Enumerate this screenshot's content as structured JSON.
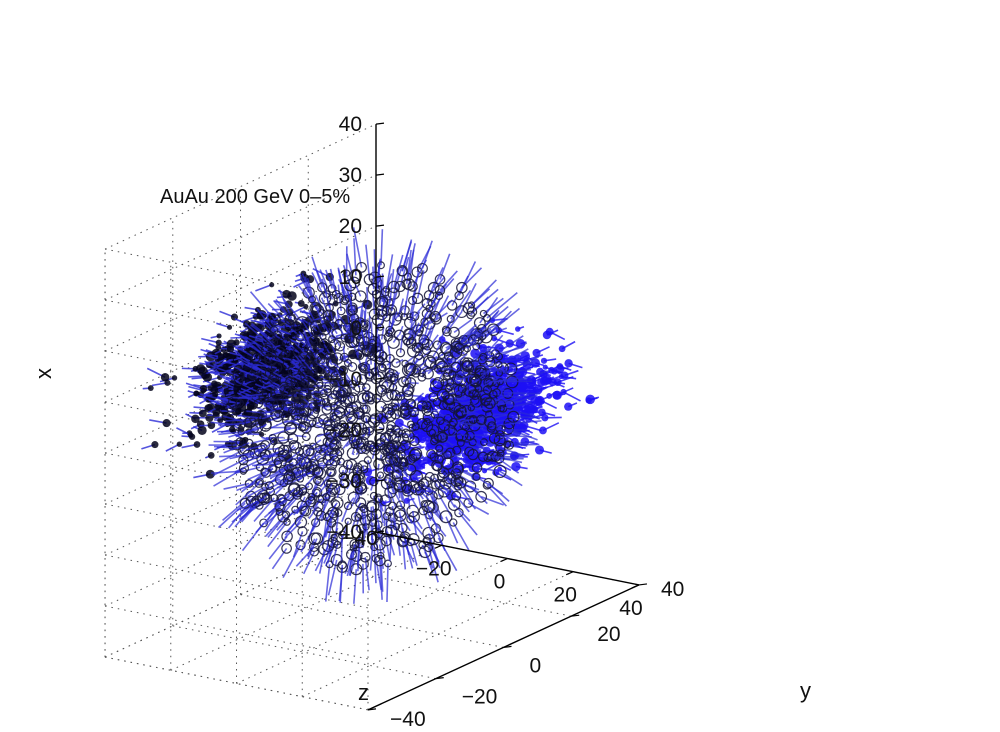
{
  "chart_data": {
    "type": "scatter",
    "annotation": "AuAu 200 GeV 0–5%",
    "xlabel": "z",
    "ylabel": "y",
    "zlabel": "x",
    "xlim": [
      -40,
      40
    ],
    "ylim": [
      -40,
      40
    ],
    "zlim": [
      -40,
      40
    ],
    "x_ticks": [
      "−40",
      "−20",
      "0",
      "20",
      "40"
    ],
    "y_ticks": [
      "−40",
      "−20",
      "0",
      "20",
      "40"
    ],
    "z_ticks": [
      "40",
      "30",
      "20",
      "10",
      "0",
      "−10",
      "−20",
      "−30",
      "−40"
    ],
    "grid": true,
    "colors": {
      "point_edge": "#14143a",
      "arrow": "#2b2bd6",
      "cluster_left": "#05051c",
      "cluster_right": "#1d10f5"
    },
    "clusters": [
      {
        "name_shown": "",
        "center": [
          -32,
          0,
          5
        ],
        "spread": [
          4,
          10,
          5
        ],
        "color": "#05051c"
      },
      {
        "name_shown": "",
        "center": [
          32,
          0,
          5
        ],
        "spread": [
          4,
          10,
          5
        ],
        "color": "#1d10f5"
      }
    ],
    "fireball": {
      "center": [
        0,
        0,
        0
      ],
      "radius": 30,
      "marker": "circle-with-velocity-arrow"
    }
  }
}
